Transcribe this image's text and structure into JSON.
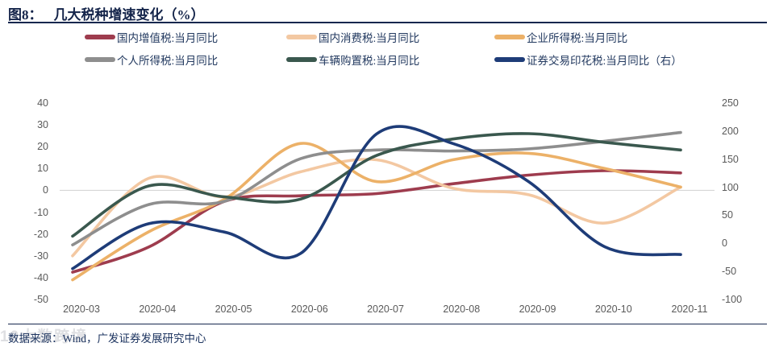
{
  "title": {
    "prefix": "图8：",
    "text": "几大税种增速变化（%）"
  },
  "source_note": "数据来源：Wind，广发证券发展研究中心",
  "watermark": "10大数跨境",
  "colors": {
    "accent_navy": "#16274e",
    "axis_text": "#595959",
    "gridline": "#d6d6d6",
    "legend_text": "#233a60"
  },
  "chart_data": {
    "type": "line",
    "title": "几大税种增速变化（%）",
    "categories": [
      "2020-03",
      "2020-04",
      "2020-05",
      "2020-06",
      "2020-07",
      "2020-08",
      "2020-09",
      "2020-10",
      "2020-11"
    ],
    "grid": "zero-line-only-left-axis",
    "legend_position": "top",
    "left_axis": {
      "min": -50,
      "max": 40,
      "ticks": [
        40,
        30,
        20,
        10,
        0,
        -10,
        -20,
        -30,
        -40,
        -50
      ]
    },
    "right_axis": {
      "min": -100,
      "max": 250,
      "ticks": [
        250,
        200,
        150,
        100,
        50,
        0,
        -50,
        -100
      ]
    },
    "series": [
      {
        "name": "国内增值税:当月同比",
        "axis": "left",
        "color": "#9e3c4e",
        "values": [
          -37.5,
          -26,
          -5,
          -2.5,
          -1.5,
          3,
          7,
          9,
          8
        ]
      },
      {
        "name": "国内消费税:当月同比",
        "axis": "left",
        "color": "#f3c8a2",
        "values": [
          -30,
          5.5,
          -3,
          8.5,
          14,
          1,
          -2,
          -15,
          1.5
        ]
      },
      {
        "name": "企业所得税:当月同比",
        "axis": "left",
        "color": "#ecb168",
        "values": [
          -41,
          -19,
          -4,
          21.5,
          4,
          14,
          17,
          10,
          1.5
        ]
      },
      {
        "name": "个人所得税:当月同比",
        "axis": "left",
        "color": "#8e8e8e",
        "values": [
          -25,
          -6.5,
          -5,
          14.5,
          18.5,
          18,
          19,
          22.5,
          26.5
        ]
      },
      {
        "name": "车辆购置税:当月同比",
        "axis": "left",
        "color": "#3a584e",
        "values": [
          -21,
          2,
          -3,
          -4,
          16,
          23.5,
          26,
          22,
          18.5
        ]
      },
      {
        "name": "证券交易印花税:当月同比（右）",
        "axis": "right",
        "color": "#1e3c78",
        "values": [
          -45,
          35,
          20,
          -18,
          195,
          178,
          110,
          -6,
          -20
        ]
      }
    ]
  }
}
